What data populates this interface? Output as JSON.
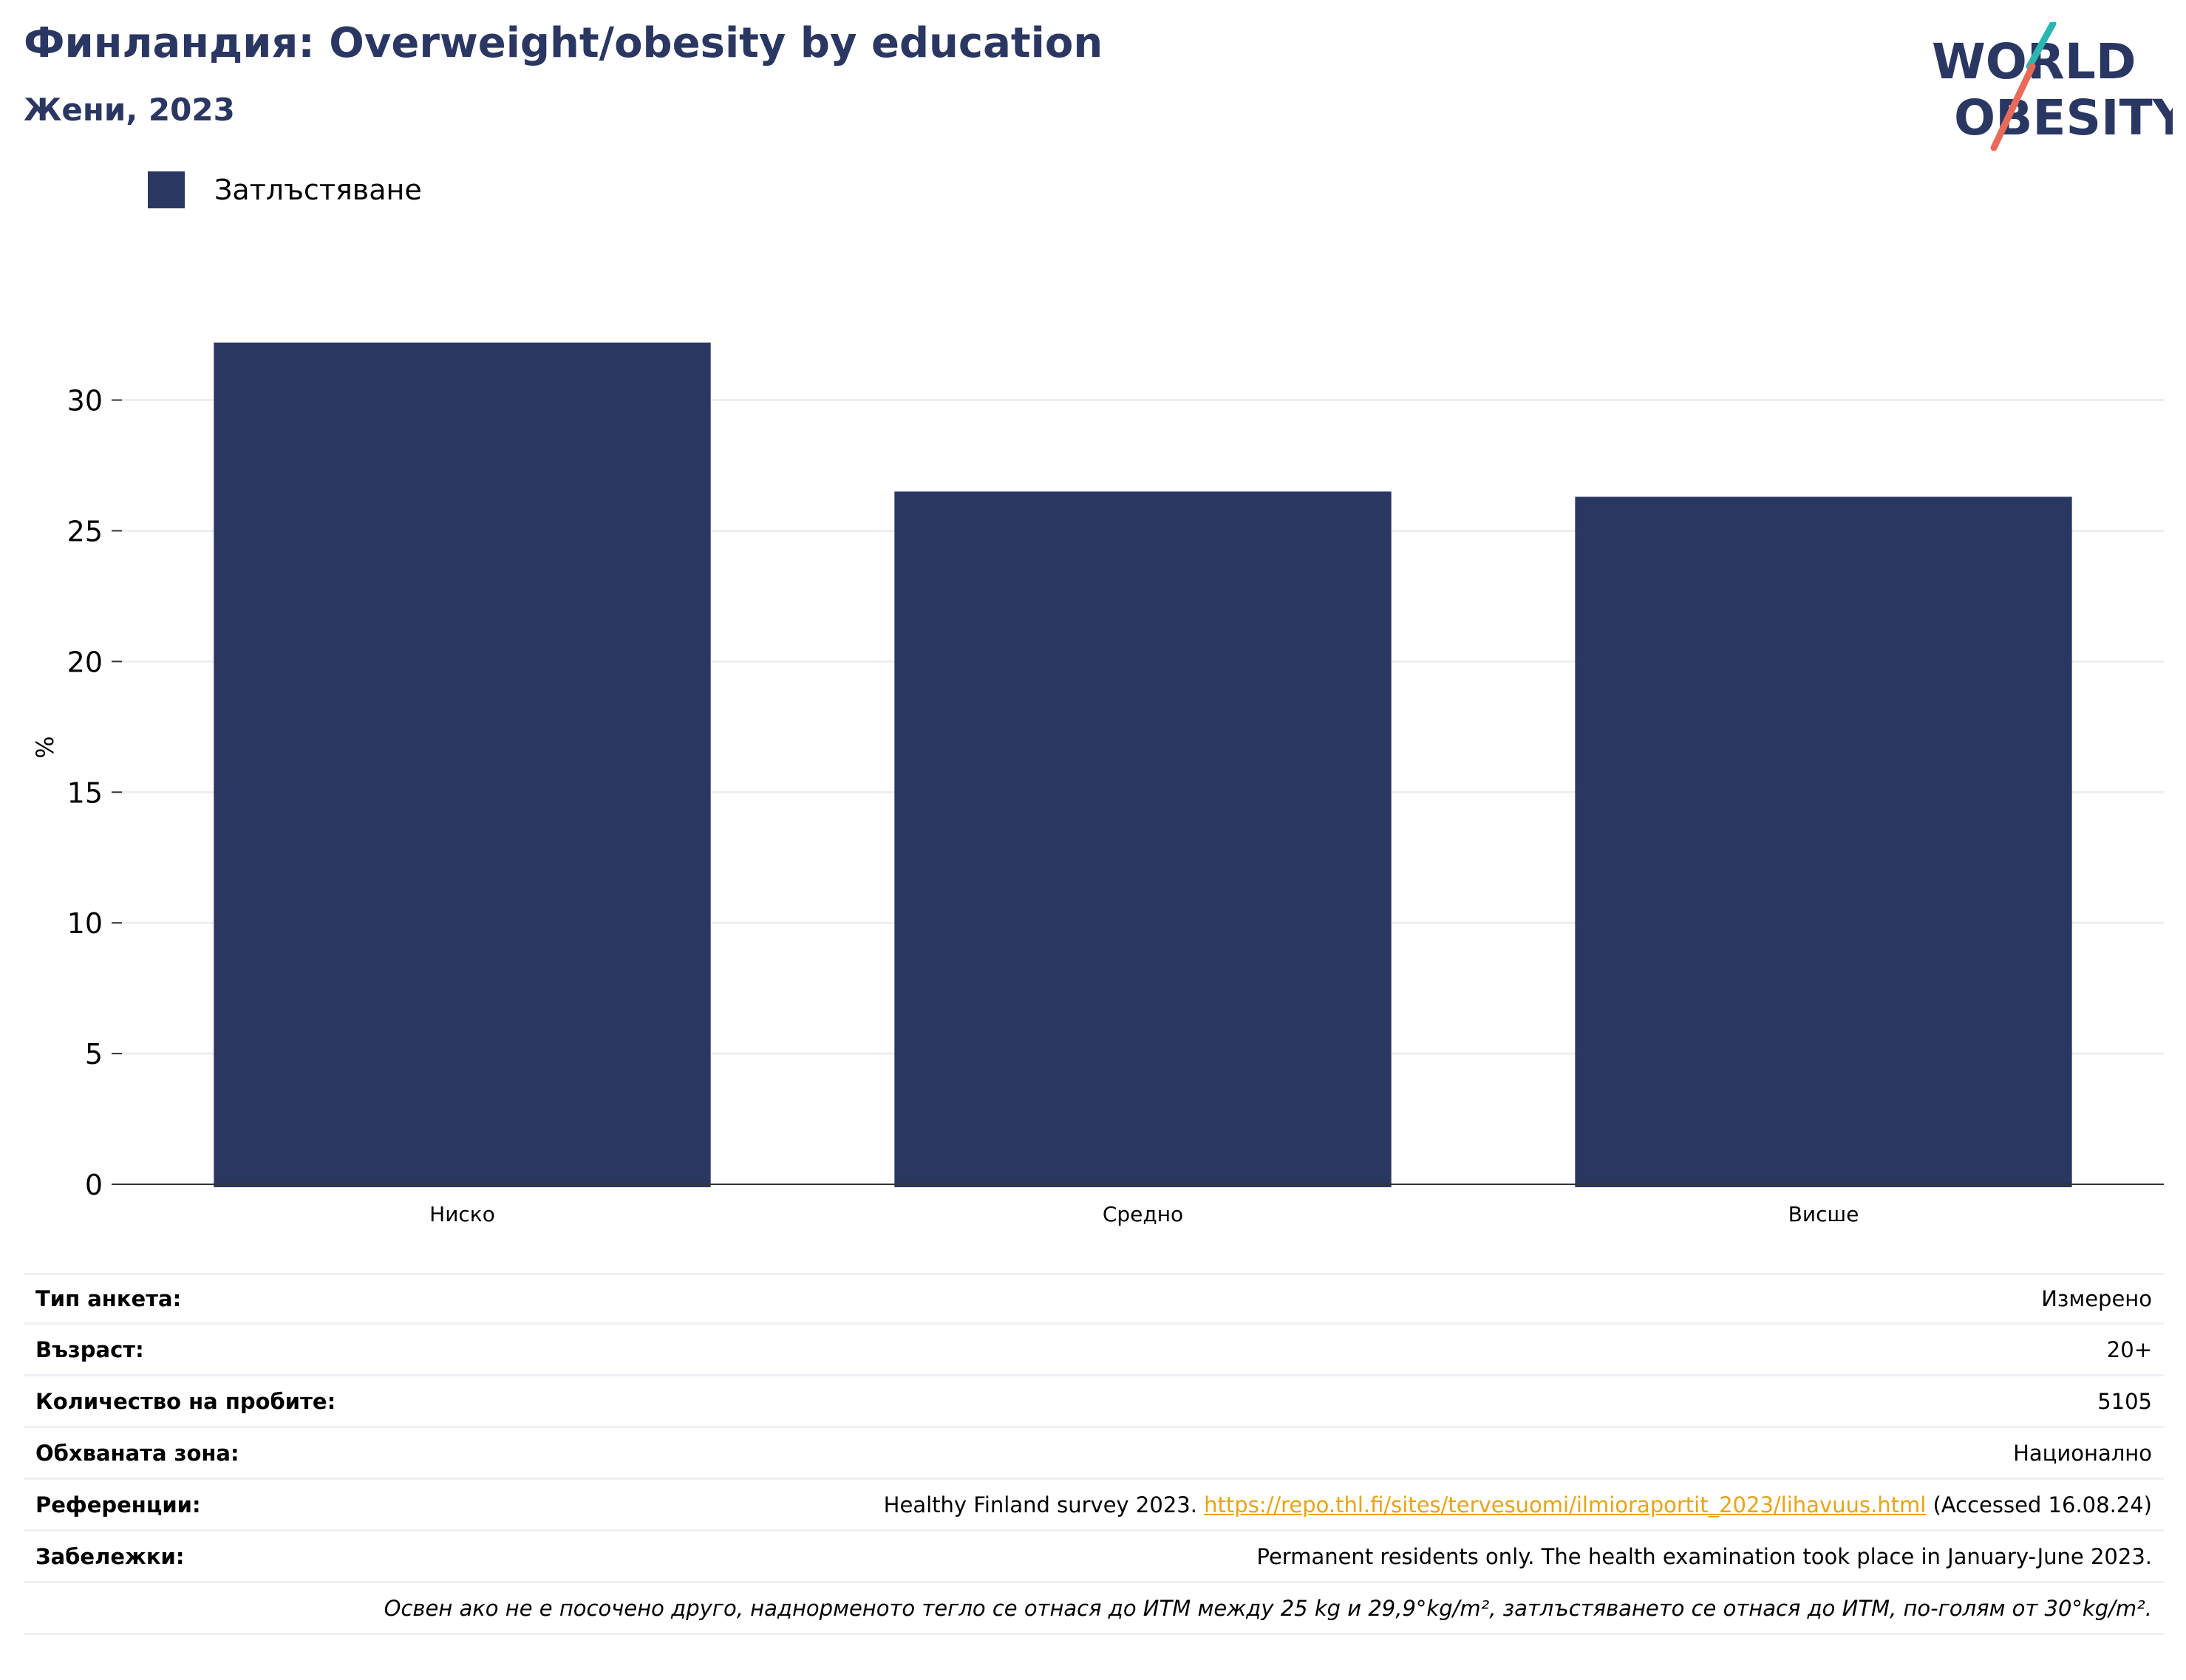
{
  "header": {
    "title": "Финландия: Overweight/obesity by education",
    "subtitle": "Жени, 2023"
  },
  "logo": {
    "line1": "WORLD",
    "line2": "OBESITY"
  },
  "colors": {
    "bar": "#2a3762",
    "title": "#2a3762",
    "grid": "#eceef2",
    "link": "#e8a415",
    "logo_teal": "#2bb6b1",
    "logo_coral": "#ea6a5a"
  },
  "chart_data": {
    "type": "bar",
    "categories": [
      "Ниско",
      "Средно",
      "Висше"
    ],
    "series": [
      {
        "name": "Затлъстяване",
        "values": [
          32.2,
          26.5,
          26.3
        ]
      }
    ],
    "ylabel": "%",
    "xlabel": "",
    "ylim": [
      0,
      34
    ],
    "yticks": [
      0,
      5,
      10,
      15,
      20,
      25,
      30
    ],
    "grid": true,
    "legend": "top-left"
  },
  "info": {
    "survey_type": {
      "label": "Тип анкета:",
      "value": "Измерено"
    },
    "age": {
      "label": "Възраст:",
      "value": "20+"
    },
    "sample_size": {
      "label": "Количество на пробите:",
      "value": "5105"
    },
    "area_covered": {
      "label": "Обхваната зона:",
      "value": "Национално"
    },
    "references": {
      "label": "Референции:",
      "prefix": "Healthy Finland survey 2023.",
      "link": "https://repo.thl.fi/sites/tervesuomi/ilmioraportit_2023/lihavuus.html",
      "suffix": "(Accessed 16.08.24)"
    },
    "notes": {
      "label": "Забележки:",
      "value": "Permanent residents only. The health examination took place in January-June 2023."
    },
    "definition": "Освен ако не е посочено друго, наднорменото тегло се отнася до ИТМ между 25 kg и 29,9°kg/m², затлъстяването се отнася до ИТМ, по-голям от 30°kg/m²."
  }
}
